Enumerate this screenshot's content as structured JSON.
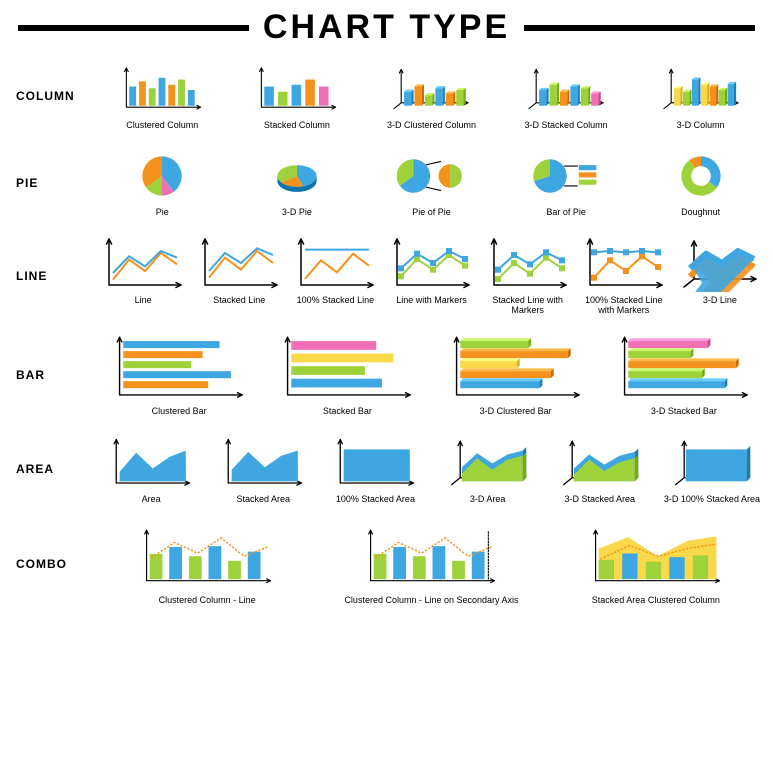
{
  "title": "CHART TYPE",
  "colors": {
    "blue": "#3ea6e0",
    "green": "#9ed23a",
    "orange": "#f4921e",
    "pink": "#f070b4",
    "yellow": "#f9d84a",
    "black": "#000000",
    "white": "#ffffff",
    "bg": "#ffffff",
    "title_fontsize": 34,
    "row_label_fontsize": 12,
    "caption_fontsize": 9
  },
  "rows": [
    {
      "key": "column",
      "label": "COLUMN",
      "layout": "narrow",
      "cells": [
        {
          "type": "column-clustered",
          "caption": "Clustered Column",
          "values": [
            55,
            70,
            50,
            80,
            60,
            75,
            45
          ],
          "bar_colors": [
            "#3ea6e0",
            "#f4921e",
            "#9ed23a",
            "#3ea6e0",
            "#f4921e",
            "#9ed23a",
            "#3ea6e0"
          ]
        },
        {
          "type": "column-stacked",
          "caption": "Stacked Column",
          "values": [
            55,
            40,
            60,
            75,
            55
          ],
          "bar_colors": [
            "#3ea6e0",
            "#9ed23a",
            "#3ea6e0",
            "#f4921e",
            "#f070b4"
          ]
        },
        {
          "type": "column-3d-clustered",
          "caption": "3-D Clustered Column",
          "values": [
            40,
            55,
            30,
            50,
            35,
            45
          ],
          "bar_colors": [
            "#3ea6e0",
            "#f4921e",
            "#9ed23a",
            "#3ea6e0",
            "#f4921e",
            "#9ed23a"
          ]
        },
        {
          "type": "column-3d-stacked",
          "caption": "3-D Stacked Column",
          "values": [
            45,
            60,
            40,
            55,
            50,
            35
          ],
          "bar_colors": [
            "#3ea6e0",
            "#9ed23a",
            "#f4921e",
            "#3ea6e0",
            "#9ed23a",
            "#f070b4"
          ]
        },
        {
          "type": "column-3d",
          "caption": "3-D Column",
          "values": [
            50,
            40,
            75,
            60,
            55,
            45,
            62
          ],
          "bar_colors": [
            "#f9d84a",
            "#9ed23a",
            "#3ea6e0",
            "#f9d84a",
            "#f4921e",
            "#9ed23a",
            "#3ea6e0"
          ]
        }
      ]
    },
    {
      "key": "pie",
      "label": "PIE",
      "layout": "narrow",
      "cells": [
        {
          "type": "pie",
          "caption": "Pie",
          "slices": [
            {
              "v": 40,
              "c": "#3ea6e0"
            },
            {
              "v": 10,
              "c": "#f070b4"
            },
            {
              "v": 15,
              "c": "#9ed23a"
            },
            {
              "v": 35,
              "c": "#f4921e"
            }
          ]
        },
        {
          "type": "pie-3d",
          "caption": "3-D Pie",
          "slices": [
            {
              "v": 45,
              "c": "#3ea6e0"
            },
            {
              "v": 20,
              "c": "#f4921e"
            },
            {
              "v": 35,
              "c": "#9ed23a"
            }
          ]
        },
        {
          "type": "pie-of-pie",
          "caption": "Pie of Pie",
          "main": [
            {
              "v": 65,
              "c": "#3ea6e0"
            },
            {
              "v": 35,
              "c": "#9ed23a"
            }
          ],
          "sub": [
            {
              "v": 50,
              "c": "#9ed23a"
            },
            {
              "v": 50,
              "c": "#f4921e"
            }
          ]
        },
        {
          "type": "bar-of-pie",
          "caption": "Bar of Pie",
          "main": [
            {
              "v": 70,
              "c": "#3ea6e0"
            },
            {
              "v": 30,
              "c": "#9ed23a"
            }
          ],
          "bars": [
            {
              "c": "#3ea6e0"
            },
            {
              "c": "#f4921e"
            },
            {
              "c": "#9ed23a"
            }
          ]
        },
        {
          "type": "doughnut",
          "caption": "Doughnut",
          "slices": [
            {
              "v": 35,
              "c": "#3ea6e0"
            },
            {
              "v": 55,
              "c": "#9ed23a"
            },
            {
              "v": 10,
              "c": "#f4921e"
            }
          ]
        }
      ]
    },
    {
      "key": "line",
      "label": "LINE",
      "layout": "narrow7",
      "cells": [
        {
          "type": "line",
          "caption": "Line",
          "series": [
            {
              "c": "#f4921e",
              "pts": [
                5,
                35,
                18,
                45,
                28
              ]
            },
            {
              "c": "#3ea6e0",
              "pts": [
                15,
                40,
                25,
                48,
                38
              ]
            }
          ]
        },
        {
          "type": "line-stacked",
          "caption": "Stacked Line",
          "series": [
            {
              "c": "#f4921e",
              "pts": [
                8,
                38,
                20,
                48,
                30
              ]
            },
            {
              "c": "#3ea6e0",
              "pts": [
                18,
                45,
                30,
                52,
                42
              ]
            }
          ]
        },
        {
          "type": "line-100stacked",
          "caption": "100% Stacked Line",
          "series": [
            {
              "c": "#f4921e",
              "pts": [
                6,
                34,
                16,
                44,
                26
              ]
            },
            {
              "c": "#3ea6e0",
              "pts": [
                50,
                50,
                50,
                50,
                50
              ]
            }
          ]
        },
        {
          "type": "line-markers",
          "caption": "Line with Markers",
          "series": [
            {
              "c": "#9ed23a",
              "pts": [
                10,
                36,
                20,
                42,
                26
              ]
            },
            {
              "c": "#3ea6e0",
              "pts": [
                22,
                44,
                30,
                48,
                36
              ]
            }
          ],
          "markers": true
        },
        {
          "type": "line-stacked-markers",
          "caption": "Stacked Line with Markers",
          "series": [
            {
              "c": "#9ed23a",
              "pts": [
                6,
                30,
                14,
                38,
                22
              ]
            },
            {
              "c": "#3ea6e0",
              "pts": [
                20,
                42,
                28,
                46,
                34
              ]
            }
          ],
          "markers": true
        },
        {
          "type": "line-100stacked-markers",
          "caption": "100% Stacked Line with Markers",
          "series": [
            {
              "c": "#f4921e",
              "pts": [
                8,
                34,
                18,
                40,
                24
              ]
            },
            {
              "c": "#3ea6e0",
              "pts": [
                46,
                48,
                46,
                48,
                46
              ]
            }
          ],
          "markers": true
        },
        {
          "type": "line-3d",
          "caption": "3-D Line",
          "series": [
            {
              "c": "#f4921e",
              "pts": [
                10,
                34,
                18,
                40,
                24
              ]
            },
            {
              "c": "#3ea6e0",
              "pts": [
                22,
                44,
                30,
                48,
                36
              ]
            }
          ]
        }
      ]
    },
    {
      "key": "bar",
      "label": "BAR",
      "layout": "wide",
      "cells": [
        {
          "type": "bar-clustered",
          "caption": "Clustered Bar",
          "values": [
            85,
            70,
            60,
            95,
            75
          ],
          "bar_colors": [
            "#3ea6e0",
            "#f4921e",
            "#9ed23a",
            "#3ea6e0",
            "#f4921e"
          ]
        },
        {
          "type": "bar-stacked",
          "caption": "Stacked Bar",
          "values": [
            75,
            90,
            65,
            80
          ],
          "bar_colors": [
            "#f070b4",
            "#f9d84a",
            "#9ed23a",
            "#3ea6e0"
          ]
        },
        {
          "type": "bar-3d-clustered",
          "caption": "3-D Clustered  Bar",
          "values": [
            60,
            95,
            50,
            80,
            70
          ],
          "bar_colors": [
            "#9ed23a",
            "#f4921e",
            "#f9d84a",
            "#f4921e",
            "#3ea6e0"
          ]
        },
        {
          "type": "bar-3d-stacked",
          "caption": "3-D Stacked Bar",
          "values": [
            70,
            55,
            95,
            65,
            85
          ],
          "bar_colors": [
            "#f070b4",
            "#9ed23a",
            "#f4921e",
            "#9ed23a",
            "#3ea6e0"
          ]
        }
      ]
    },
    {
      "key": "area",
      "label": "AREA",
      "layout": "narrow6",
      "cells": [
        {
          "type": "area",
          "caption": "Area",
          "series": [
            {
              "c": "#3ea6e0",
              "pts": [
                15,
                45,
                20,
                38,
                48
              ]
            },
            {
              "c": "#f4921e",
              "pts": [
                5,
                28,
                10,
                22,
                30
              ]
            }
          ]
        },
        {
          "type": "area-stacked",
          "caption": "Stacked Area",
          "series": [
            {
              "c": "#3ea6e0",
              "pts": [
                18,
                46,
                22,
                40,
                48
              ]
            },
            {
              "c": "#f4921e",
              "pts": [
                6,
                26,
                8,
                20,
                28
              ]
            }
          ]
        },
        {
          "type": "area-100stacked",
          "caption": "100% Stacked Area",
          "series": [
            {
              "c": "#3ea6e0",
              "pts": [
                50,
                50,
                50,
                50,
                50
              ]
            },
            {
              "c": "#9ed23a",
              "pts": [
                10,
                32,
                14,
                28,
                34
              ]
            }
          ]
        },
        {
          "type": "area-3d",
          "caption": "3-D Area",
          "series": [
            {
              "c": "#9ed23a",
              "pts": [
                12,
                36,
                18,
                34,
                40
              ]
            },
            {
              "c": "#3ea6e0",
              "pts": [
                22,
                44,
                28,
                42,
                48
              ]
            }
          ]
        },
        {
          "type": "area-3d-stacked",
          "caption": "3-D Stacked Area",
          "series": [
            {
              "c": "#9ed23a",
              "pts": [
                10,
                34,
                16,
                30,
                36
              ]
            },
            {
              "c": "#3ea6e0",
              "pts": [
                20,
                42,
                26,
                40,
                46
              ]
            }
          ]
        },
        {
          "type": "area-3d-100stacked",
          "caption": "3-D 100% Stacked Area",
          "series": [
            {
              "c": "#3ea6e0",
              "pts": [
                50,
                50,
                50,
                50,
                50
              ]
            },
            {
              "c": "#9ed23a",
              "pts": [
                12,
                34,
                18,
                30,
                36
              ]
            }
          ]
        }
      ]
    },
    {
      "key": "combo",
      "label": "COMBO",
      "layout": "wide3",
      "cells": [
        {
          "type": "combo-col-line",
          "caption": "Clustered Column - Line",
          "values": [
            55,
            70,
            50,
            72,
            40,
            60
          ],
          "bar_colors": [
            "#9ed23a",
            "#3ea6e0",
            "#9ed23a",
            "#3ea6e0",
            "#9ed23a",
            "#3ea6e0"
          ],
          "line": {
            "c": "#f4921e",
            "pts": [
              28,
              48,
              34,
              54,
              30,
              42
            ]
          }
        },
        {
          "type": "combo-col-line-2ax",
          "caption": "Clustered Column - Line on Secondary Axis",
          "values": [
            55,
            70,
            50,
            72,
            40,
            60
          ],
          "bar_colors": [
            "#9ed23a",
            "#3ea6e0",
            "#9ed23a",
            "#3ea6e0",
            "#9ed23a",
            "#3ea6e0"
          ],
          "line": {
            "c": "#f4921e",
            "pts": [
              28,
              48,
              34,
              54,
              30,
              42
            ]
          },
          "secondary_axis": true
        },
        {
          "type": "combo-area-col",
          "caption": "Stacked Area Clustered Column",
          "area": {
            "c": "#f9d84a",
            "pts": [
              40,
              55,
              30,
              50,
              56
            ]
          },
          "values": [
            42,
            56,
            38,
            48,
            52
          ],
          "bar_colors": [
            "#9ed23a",
            "#3ea6e0",
            "#9ed23a",
            "#3ea6e0",
            "#9ed23a"
          ],
          "line": {
            "c": "#f4921e",
            "pts": [
              26,
              44,
              30,
              40,
              46
            ]
          }
        }
      ]
    }
  ]
}
